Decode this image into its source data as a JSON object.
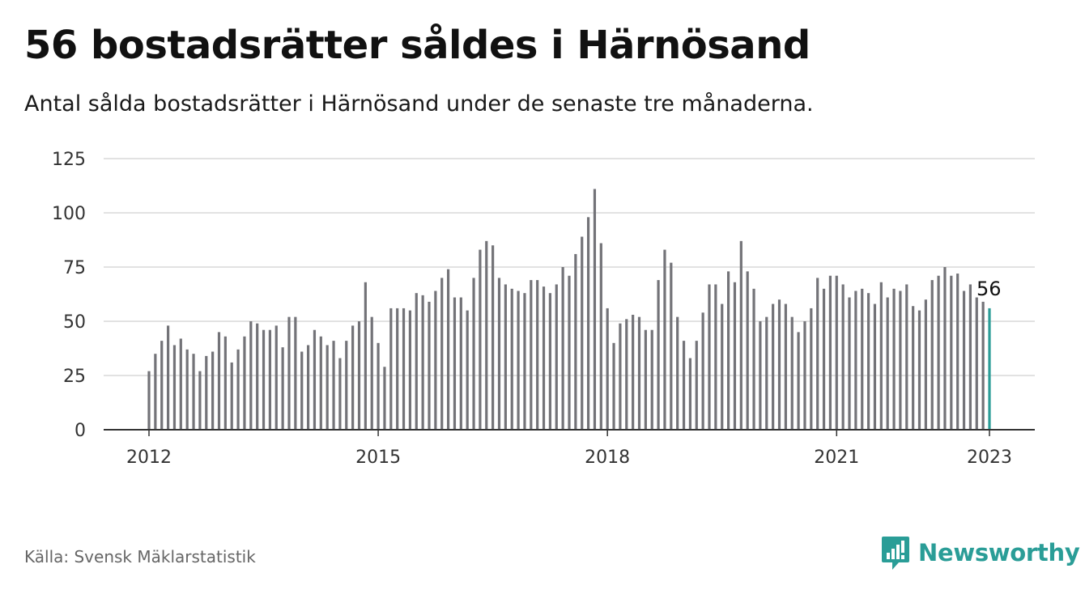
{
  "title": "56 bostadsrätter såldes i Härnösand",
  "subtitle": "Antal sålda bostadsrätter i Härnösand under de senaste tre månaderna.",
  "source": "Källa: Svensk Mäklarstatistik",
  "brand": "Newsworthy",
  "colors": {
    "bar": "#737378",
    "highlight": "#2a9d97",
    "grid": "#d9d9d9",
    "axis": "#333333",
    "brand": "#2a9d97"
  },
  "chart_data": {
    "type": "bar",
    "title": "56 bostadsrätter såldes i Härnösand",
    "subtitle": "Antal sålda bostadsrätter i Härnösand under de senaste tre månaderna.",
    "xlabel": "",
    "ylabel": "",
    "ylim": [
      0,
      125
    ],
    "yticks": [
      0,
      25,
      50,
      75,
      100,
      125
    ],
    "xtick_labels": [
      "2012",
      "2015",
      "2018",
      "2021",
      "2023"
    ],
    "grid": true,
    "legend": "none",
    "highlight_label": "56",
    "series": [
      {
        "values": [
          27,
          35,
          41,
          48,
          39,
          42,
          37,
          35,
          27,
          34,
          36,
          45,
          43,
          31,
          37,
          43,
          50,
          49,
          46,
          46,
          48,
          38,
          52,
          52,
          36,
          39,
          46,
          43,
          39,
          41,
          33,
          41,
          48,
          50,
          68,
          52,
          40,
          29,
          56,
          56,
          56,
          55,
          63,
          62,
          59,
          64,
          70,
          74,
          61,
          61,
          55,
          70,
          83,
          87,
          85,
          70,
          67,
          65,
          64,
          63,
          69,
          69,
          66,
          63,
          67,
          75,
          71,
          81,
          89,
          98,
          111,
          86,
          56,
          40,
          49,
          51,
          53,
          52,
          46,
          46,
          69,
          83,
          77,
          52,
          41,
          33,
          41,
          54,
          67,
          67,
          58,
          73,
          68,
          87,
          73,
          65,
          50,
          52,
          58,
          60,
          58,
          52,
          45,
          50,
          56,
          70,
          65,
          71,
          71,
          67,
          61,
          64,
          65,
          63,
          58,
          68,
          61,
          65,
          64,
          67,
          57,
          55,
          60,
          69,
          71,
          75,
          71,
          72,
          64,
          67,
          61,
          59,
          56
        ]
      }
    ]
  }
}
